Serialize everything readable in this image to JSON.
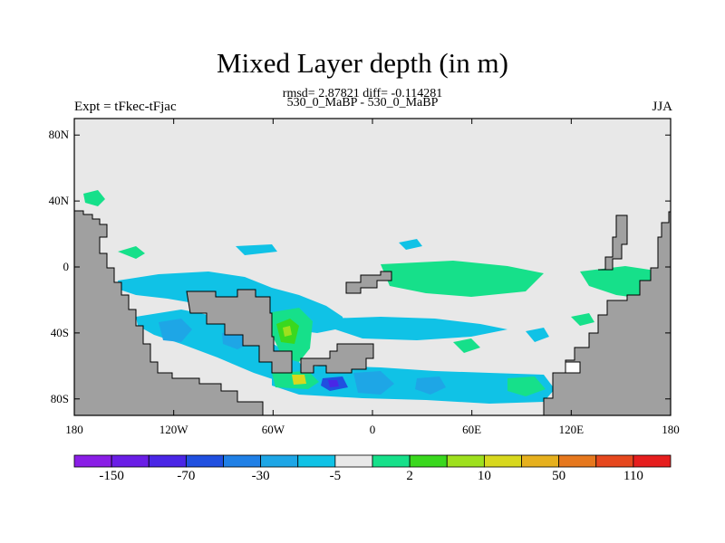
{
  "title": "Mixed Layer depth (in m)",
  "stats": "rmsd= 2.87821 diff= -0.114281",
  "subtitle": "530_0_MaBP - 530_0_MaBP",
  "left_label": "Expt = tFkec-tFjac",
  "right_label": "JJA",
  "colors": {
    "ocean_background": "#e8e8e8",
    "land": "#a0a0a0",
    "frame": "#000000"
  },
  "axes": {
    "y_ticks": [
      {
        "value": 80,
        "label": "80N"
      },
      {
        "value": 40,
        "label": "40N"
      },
      {
        "value": 0,
        "label": "0"
      },
      {
        "value": -40,
        "label": "40S"
      },
      {
        "value": -80,
        "label": "80S"
      }
    ],
    "x_ticks": [
      {
        "value": -180,
        "label": "180"
      },
      {
        "value": -120,
        "label": "120W"
      },
      {
        "value": -60,
        "label": "60W"
      },
      {
        "value": 0,
        "label": "0"
      },
      {
        "value": 60,
        "label": "60E"
      },
      {
        "value": 120,
        "label": "120E"
      },
      {
        "value": 180,
        "label": "180"
      }
    ],
    "lon_range": [
      -180,
      180
    ],
    "lat_range": [
      -90,
      90
    ]
  },
  "colorbar": {
    "colors": [
      "#8a1ee6",
      "#6a1ee6",
      "#4a26e6",
      "#2050e0",
      "#2080e6",
      "#1ea6e6",
      "#10c2e6",
      "#e8e8e8",
      "#16e08a",
      "#3ad81e",
      "#9ee01e",
      "#d8d81e",
      "#e6b01e",
      "#e6781e",
      "#e6481e",
      "#e61e1e"
    ],
    "labels": [
      {
        "boundary": 1,
        "text": "-150"
      },
      {
        "boundary": 3,
        "text": "-70"
      },
      {
        "boundary": 5,
        "text": "-30"
      },
      {
        "boundary": 7,
        "text": "-5"
      },
      {
        "boundary": 9,
        "text": "2"
      },
      {
        "boundary": 11,
        "text": "10"
      },
      {
        "boundary": 13,
        "text": "50"
      },
      {
        "boundary": 15,
        "text": "110"
      }
    ]
  }
}
